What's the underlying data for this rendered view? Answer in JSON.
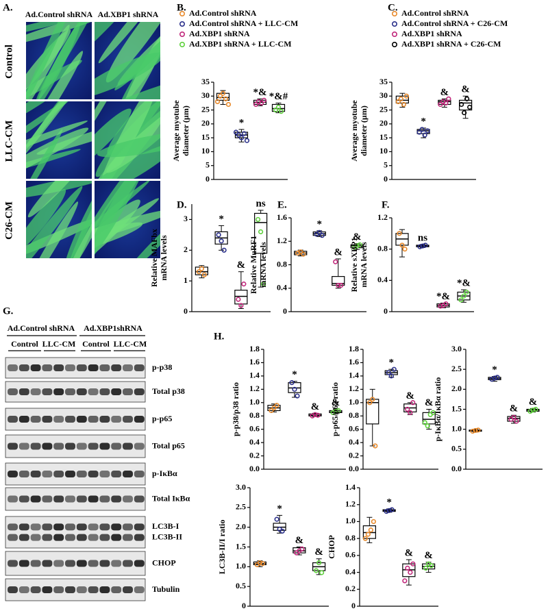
{
  "panel_a": {
    "label": "A.",
    "columns": [
      "Ad.Control shRNA",
      "Ad.XBP1 shRNA"
    ],
    "rows": [
      "Control",
      "LLC-CM",
      "C26-CM"
    ]
  },
  "chart_data": [
    {
      "type": "box",
      "label": "B.",
      "ylabel": [
        "Average myotube",
        "diameter (µm)"
      ],
      "ylim": [
        0,
        35
      ],
      "yticks": [
        0,
        5,
        10,
        15,
        20,
        25,
        30,
        35
      ],
      "series": [
        {
          "name": "Ad.Control shRNA",
          "color": "#e8892a",
          "values": [
            28,
            30,
            31,
            29,
            27
          ],
          "box": [
            27,
            28.5,
            29.5,
            31,
            32
          ]
        },
        {
          "name": "Ad.Control shRNA + LLC-CM",
          "color": "#2a2f8a",
          "values": [
            17,
            16,
            15,
            16.5,
            14
          ],
          "box": [
            13.5,
            15,
            16,
            17,
            18
          ],
          "annotation": "*"
        },
        {
          "name": "Ad.XBP1 shRNA",
          "color": "#c0267a",
          "values": [
            27,
            28,
            27.5,
            28.5
          ],
          "box": [
            26.5,
            27,
            27.8,
            28.5,
            29
          ],
          "annotation": "*&"
        },
        {
          "name": "Ad.XBP1 shRNA + LLC-CM",
          "color": "#5ed13c",
          "values": [
            25,
            26,
            24.5
          ],
          "box": [
            24,
            24.5,
            25.5,
            27,
            27.5
          ],
          "annotation": "*&#"
        }
      ]
    },
    {
      "type": "box",
      "label": "C.",
      "ylabel": [
        "Average myotube",
        "diameter (µm)"
      ],
      "ylim": [
        0,
        35
      ],
      "yticks": [
        0,
        5,
        10,
        15,
        20,
        25,
        30,
        35
      ],
      "series": [
        {
          "name": "Ad.Control shRNA",
          "color": "#e8892a",
          "values": [
            28,
            29,
            27,
            30
          ],
          "box": [
            26,
            27.5,
            28.5,
            30,
            31
          ]
        },
        {
          "name": "Ad.Control shRNA + C26-CM",
          "color": "#2a2f8a",
          "values": [
            17,
            18,
            16,
            17.5
          ],
          "box": [
            15,
            16.5,
            17.5,
            18,
            18.5
          ],
          "annotation": "*"
        },
        {
          "name": "Ad.XBP1 shRNA",
          "color": "#c0267a",
          "values": [
            27,
            28,
            27.5,
            29
          ],
          "box": [
            26,
            27,
            28,
            28.5,
            29
          ],
          "annotation": "&"
        },
        {
          "name": "Ad.XBP1 shRNA + C26-CM",
          "color": "#000000",
          "values": [
            27,
            24,
            29,
            26
          ],
          "box": [
            22,
            25,
            27.5,
            28.5,
            30
          ],
          "annotation": "&"
        }
      ]
    },
    {
      "type": "box",
      "label": "D.",
      "ylabel": [
        "Relative MAFbx",
        "mRNA levels"
      ],
      "ylim": [
        0,
        3.5
      ],
      "yticks": [
        0,
        1,
        2,
        3
      ],
      "series": [
        {
          "color": "#e8892a",
          "values": [
            1.3,
            1.4,
            1.2
          ],
          "box": [
            1.1,
            1.2,
            1.3,
            1.45,
            1.5
          ]
        },
        {
          "color": "#2a2f8a",
          "values": [
            2.5,
            2.3,
            2.0
          ],
          "box": [
            2.0,
            2.2,
            2.4,
            2.6,
            2.8
          ],
          "annotation": "*"
        },
        {
          "color": "#c0267a",
          "values": [
            0.4,
            0.2,
            0.9
          ],
          "box": [
            0.1,
            0.25,
            0.5,
            0.7,
            1.3
          ],
          "annotation": "&"
        },
        {
          "color": "#5ed13c",
          "values": [
            3.0,
            2.6,
            0.9
          ],
          "box": [
            0.8,
            1.9,
            2.9,
            3.2,
            3.3
          ],
          "annotation": "ns"
        }
      ]
    },
    {
      "type": "box",
      "label": "E.",
      "ylabel": [
        "Relative MuRF1",
        "mRNA levels"
      ],
      "ylim": [
        0,
        1.6
      ],
      "yticks": [
        0,
        0.4,
        0.8,
        1.2,
        1.6
      ],
      "series": [
        {
          "color": "#e8892a",
          "values": [
            1.0,
            1.02,
            0.98
          ],
          "box": [
            0.95,
            0.97,
            1.0,
            1.03,
            1.05
          ]
        },
        {
          "color": "#2a2f8a",
          "values": [
            1.32,
            1.35,
            1.3
          ],
          "box": [
            1.28,
            1.3,
            1.33,
            1.36,
            1.38
          ],
          "annotation": "*"
        },
        {
          "color": "#c0267a",
          "values": [
            0.85,
            0.45,
            0.45
          ],
          "box": [
            0.4,
            0.45,
            0.48,
            0.6,
            0.9
          ],
          "annotation": "&"
        },
        {
          "color": "#5ed13c",
          "values": [
            1.1,
            1.12,
            1.14
          ],
          "box": [
            1.06,
            1.09,
            1.12,
            1.14,
            1.16
          ],
          "annotation": "&"
        }
      ]
    },
    {
      "type": "box",
      "label": "F.",
      "ylabel": [
        "Relative sXBP1",
        "mRNA levels"
      ],
      "ylim": [
        0,
        1.2
      ],
      "yticks": [
        0,
        0.4,
        0.8,
        1.2
      ],
      "series": [
        {
          "color": "#e8892a",
          "values": [
            1.0,
            0.85,
            0.8
          ],
          "box": [
            0.7,
            0.85,
            0.93,
            1.0,
            1.05
          ]
        },
        {
          "color": "#2a2f8a",
          "values": [
            0.83,
            0.84,
            0.85
          ],
          "box": [
            0.82,
            0.83,
            0.84,
            0.85,
            0.86
          ],
          "annotation": "ns"
        },
        {
          "color": "#c0267a",
          "values": [
            0.07,
            0.08,
            0.1
          ],
          "box": [
            0.05,
            0.06,
            0.08,
            0.1,
            0.11
          ],
          "annotation": "*&"
        },
        {
          "color": "#5ed13c",
          "values": [
            0.15,
            0.2,
            0.25
          ],
          "box": [
            0.12,
            0.15,
            0.2,
            0.25,
            0.28
          ],
          "annotation": "*&"
        }
      ]
    },
    {
      "type": "box",
      "label": "H.",
      "ylabel": [
        "p-p38/p38 ratio"
      ],
      "ylim": [
        0,
        1.8
      ],
      "yticks": [
        {
          "value": 0,
          "label": "0.0"
        },
        0.2,
        0.4,
        0.6,
        0.8,
        {
          "value": 1,
          "label": "1.0"
        },
        1.2,
        1.4,
        1.6,
        1.8
      ],
      "series": [
        {
          "color": "#e8892a",
          "values": [
            0.88,
            0.92,
            0.96
          ],
          "box": [
            0.86,
            0.88,
            0.92,
            0.96,
            0.98
          ]
        },
        {
          "color": "#2a2f8a",
          "values": [
            1.3,
            1.2,
            1.1
          ],
          "box": [
            1.08,
            1.15,
            1.22,
            1.3,
            1.32
          ],
          "annotation": "*"
        },
        {
          "color": "#c0267a",
          "values": [
            0.8,
            0.82,
            0.81
          ],
          "box": [
            0.79,
            0.8,
            0.81,
            0.83,
            0.84
          ],
          "annotation": "&"
        },
        {
          "color": "#5ed13c",
          "values": [
            0.85,
            0.87,
            0.88
          ],
          "box": [
            0.83,
            0.85,
            0.86,
            0.88,
            0.9
          ],
          "annotation": "&"
        }
      ]
    },
    {
      "type": "box",
      "ylabel": [
        "p-p65/p65 ratio"
      ],
      "ylim": [
        0,
        1.8
      ],
      "yticks": [
        {
          "value": 0,
          "label": "0.0"
        },
        0.2,
        0.4,
        0.6,
        0.8,
        {
          "value": 1,
          "label": "1.0"
        },
        1.2,
        1.4,
        1.6,
        1.8
      ],
      "series": [
        {
          "color": "#e8892a",
          "values": [
            1.0,
            1.05,
            0.35
          ],
          "box": [
            0.35,
            0.68,
            1.0,
            1.05,
            1.2
          ]
        },
        {
          "color": "#2a2f8a",
          "values": [
            1.45,
            1.4,
            1.5
          ],
          "box": [
            1.38,
            1.42,
            1.45,
            1.48,
            1.5
          ],
          "annotation": "*"
        },
        {
          "color": "#c0267a",
          "values": [
            0.9,
            0.85,
            1.0
          ],
          "box": [
            0.82,
            0.86,
            0.92,
            0.98,
            1.0
          ],
          "annotation": "&"
        },
        {
          "color": "#5ed13c",
          "values": [
            0.7,
            0.65,
            0.82,
            0.85
          ],
          "box": [
            0.6,
            0.68,
            0.75,
            0.85,
            0.9
          ],
          "annotation": "&"
        }
      ]
    },
    {
      "type": "box",
      "ylabel": [
        "p-IκBα/IκBα ratio"
      ],
      "ylim": [
        0,
        3
      ],
      "yticks": [
        {
          "value": 0,
          "label": "0.0"
        },
        0.5,
        {
          "value": 1,
          "label": "1.0"
        },
        1.5,
        {
          "value": 2,
          "label": "2.0"
        },
        2.5,
        {
          "value": 3,
          "label": "3.0"
        }
      ],
      "series": [
        {
          "color": "#e8892a",
          "values": [
            0.95,
            0.97,
            0.98
          ],
          "box": [
            0.93,
            0.95,
            0.97,
            0.98,
            1.0
          ]
        },
        {
          "color": "#2a2f8a",
          "values": [
            2.25,
            2.28,
            2.3
          ],
          "box": [
            2.2,
            2.24,
            2.27,
            2.3,
            2.32
          ],
          "annotation": "*"
        },
        {
          "color": "#c0267a",
          "values": [
            1.25,
            1.3,
            1.2
          ],
          "box": [
            1.15,
            1.2,
            1.27,
            1.32,
            1.35
          ],
          "annotation": "&"
        },
        {
          "color": "#5ed13c",
          "values": [
            1.45,
            1.48,
            1.5
          ],
          "box": [
            1.43,
            1.45,
            1.48,
            1.5,
            1.52
          ],
          "annotation": "&"
        }
      ]
    },
    {
      "type": "box",
      "ylabel": [
        "LC3B-II/I ratio"
      ],
      "ylim": [
        0,
        3
      ],
      "yticks": [
        0,
        0.5,
        {
          "value": 1,
          "label": "1.0"
        },
        1.5,
        {
          "value": 2,
          "label": "2.0"
        },
        2.5,
        {
          "value": 3,
          "label": "3.0"
        }
      ],
      "series": [
        {
          "color": "#e8892a",
          "values": [
            1.05,
            1.1,
            1.08
          ],
          "box": [
            1.0,
            1.05,
            1.08,
            1.12,
            1.15
          ]
        },
        {
          "color": "#2a2f8a",
          "values": [
            2.2,
            1.95,
            1.9
          ],
          "box": [
            1.85,
            1.92,
            2.0,
            2.1,
            2.3
          ],
          "annotation": "*"
        },
        {
          "color": "#c0267a",
          "values": [
            1.35,
            1.4,
            1.45
          ],
          "box": [
            1.3,
            1.35,
            1.4,
            1.48,
            1.5
          ],
          "annotation": "&"
        },
        {
          "color": "#5ed13c",
          "values": [
            0.9,
            1.1,
            0.85
          ],
          "box": [
            0.8,
            0.9,
            1.0,
            1.1,
            1.2
          ],
          "annotation": "&"
        }
      ]
    },
    {
      "type": "box",
      "ylabel": [
        "CHOP"
      ],
      "ylim": [
        0,
        1.4
      ],
      "yticks": [
        0,
        0.2,
        0.4,
        0.6,
        0.8,
        {
          "value": 1,
          "label": "1.0"
        },
        1.2,
        1.4
      ],
      "series": [
        {
          "color": "#e8892a",
          "values": [
            0.8,
            0.85,
            0.9,
            1.0
          ],
          "box": [
            0.75,
            0.8,
            0.87,
            0.95,
            1.05
          ]
        },
        {
          "color": "#2a2f8a",
          "values": [
            1.12,
            1.13,
            1.14
          ],
          "box": [
            1.11,
            1.12,
            1.13,
            1.14,
            1.15
          ],
          "annotation": "*"
        },
        {
          "color": "#c0267a",
          "values": [
            0.3,
            0.45,
            0.4,
            0.5
          ],
          "box": [
            0.25,
            0.35,
            0.43,
            0.5,
            0.55
          ],
          "annotation": "&"
        },
        {
          "color": "#5ed13c",
          "values": [
            0.45,
            0.5,
            0.48
          ],
          "box": [
            0.4,
            0.44,
            0.47,
            0.5,
            0.52
          ],
          "annotation": "&"
        }
      ]
    }
  ],
  "panel_g": {
    "label": "G.",
    "groups": [
      "Ad.Control shRNA",
      "Ad.XBP1shRNA"
    ],
    "lanes": [
      "Control",
      "LLC-CM",
      "Control",
      "LLC-CM"
    ],
    "blots": [
      "p-p38",
      "Total p38",
      "p-p65",
      "Total p65",
      "p-IκBα",
      "Total IκBα",
      "LC3B-I",
      "LC3B-II",
      "CHOP",
      "Tubulin"
    ]
  }
}
